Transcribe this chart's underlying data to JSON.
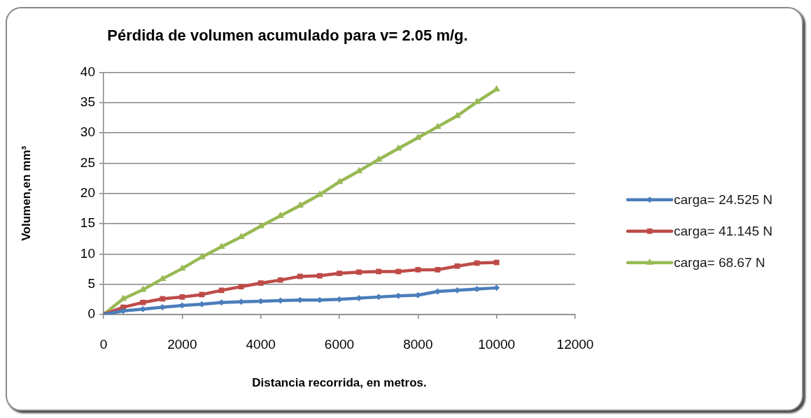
{
  "chart_data": {
    "type": "line",
    "title": "Pérdida de volumen acumulado para v= 2.05 m/g.",
    "xlabel": "Distancia recorrida, en metros.",
    "ylabel": "Volumen,en mm³",
    "x": [
      0,
      500,
      1000,
      1500,
      2000,
      2500,
      3000,
      3500,
      4000,
      4500,
      5000,
      5500,
      6000,
      6500,
      7000,
      7500,
      8000,
      8500,
      9000,
      9500,
      10000
    ],
    "series": [
      {
        "name": "carga= 24.525 N",
        "color": "#4a7ebb",
        "marker": "diamond",
        "values": [
          0,
          0.6,
          0.9,
          1.2,
          1.5,
          1.7,
          2.0,
          2.1,
          2.2,
          2.3,
          2.4,
          2.4,
          2.5,
          2.7,
          2.9,
          3.1,
          3.2,
          3.8,
          4.0,
          4.2,
          4.4
        ]
      },
      {
        "name": "carga= 41.145 N",
        "color": "#be4b48",
        "marker": "square",
        "values": [
          0,
          1.2,
          2.0,
          2.6,
          2.9,
          3.3,
          4.0,
          4.6,
          5.2,
          5.7,
          6.3,
          6.4,
          6.8,
          7.0,
          7.1,
          7.1,
          7.4,
          7.4,
          8.0,
          8.5,
          8.6
        ]
      },
      {
        "name": "carga= 68.67 N",
        "color": "#98b954",
        "marker": "triangle",
        "values": [
          0,
          2.6,
          4.1,
          5.9,
          7.6,
          9.5,
          11.2,
          12.8,
          14.6,
          16.3,
          18.0,
          19.8,
          21.9,
          23.7,
          25.6,
          27.4,
          29.2,
          31.0,
          32.8,
          35.1,
          37.2
        ]
      }
    ],
    "xlim": [
      0,
      12000
    ],
    "xticks": [
      0,
      2000,
      4000,
      6000,
      8000,
      10000,
      12000
    ],
    "ylim": [
      0,
      40
    ],
    "yticks": [
      0,
      5,
      10,
      15,
      20,
      25,
      30,
      35,
      40
    ],
    "grid": "y",
    "legend": "right",
    "line_style": "solid"
  }
}
